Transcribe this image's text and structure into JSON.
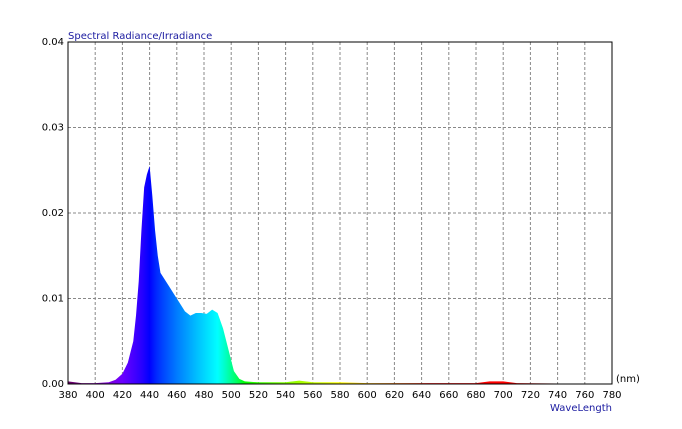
{
  "chart_data": {
    "type": "area",
    "title": "Spectral Radiance/Irradiance",
    "x_unit": "(nm)",
    "x_label": "WaveLength",
    "x": [
      380,
      390,
      400,
      410,
      415,
      420,
      424,
      428,
      430,
      432,
      434,
      436,
      438,
      440,
      442,
      444,
      446,
      448,
      450,
      454,
      458,
      462,
      466,
      470,
      474,
      478,
      482,
      486,
      490,
      494,
      498,
      502,
      506,
      510,
      520,
      540,
      550,
      560,
      580,
      600,
      680,
      690,
      700,
      710,
      780
    ],
    "values": [
      0.0003,
      0.0001,
      0.0001,
      0.0002,
      0.0005,
      0.0012,
      0.0025,
      0.005,
      0.008,
      0.012,
      0.018,
      0.023,
      0.0245,
      0.0255,
      0.022,
      0.018,
      0.015,
      0.013,
      0.0125,
      0.0115,
      0.0105,
      0.0095,
      0.0085,
      0.008,
      0.0083,
      0.0083,
      0.0082,
      0.0087,
      0.0083,
      0.0065,
      0.004,
      0.0015,
      0.0006,
      0.0003,
      0.0002,
      0.0002,
      0.0004,
      0.0002,
      0.0002,
      0.0001,
      0.0001,
      0.0003,
      0.0003,
      0.0001,
      0
    ],
    "xlim": [
      380,
      780
    ],
    "xticks": [
      380,
      400,
      420,
      440,
      460,
      480,
      500,
      520,
      540,
      560,
      580,
      600,
      620,
      640,
      660,
      680,
      700,
      720,
      740,
      760,
      780
    ],
    "ylim": [
      0,
      0.04
    ],
    "yticks": [
      {
        "value": 0,
        "label": "0.00"
      },
      0.01,
      0.02,
      0.03,
      0.04
    ],
    "grid": true,
    "fill": "spectrum"
  }
}
